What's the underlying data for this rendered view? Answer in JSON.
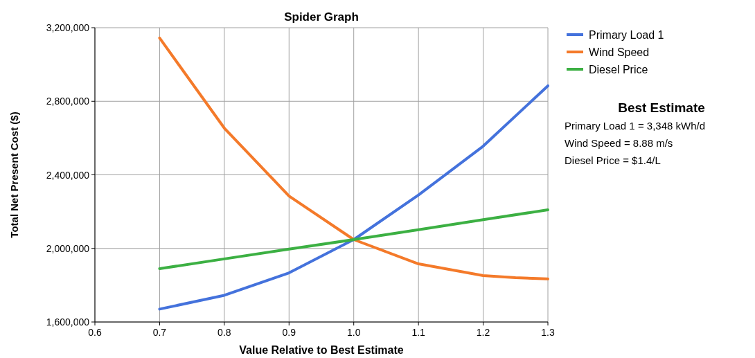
{
  "chart_data": {
    "type": "line",
    "title": "Spider Graph",
    "xlabel": "Value Relative to Best Estimate",
    "ylabel": "Total Net Present Cost ($)",
    "xlim": [
      0.6,
      1.3
    ],
    "xticks": [
      {
        "value": 0.6,
        "label": "0.6"
      },
      {
        "value": 0.7,
        "label": "0.7"
      },
      {
        "value": 0.8,
        "label": "0.8"
      },
      {
        "value": 0.9,
        "label": "0.9"
      },
      {
        "value": 1.0,
        "label": "1.0"
      },
      {
        "value": 1.1,
        "label": "1.1"
      },
      {
        "value": 1.2,
        "label": "1.2"
      },
      {
        "value": 1.3,
        "label": "1.3"
      }
    ],
    "ylim": [
      1600000,
      3200000
    ],
    "yticks": [
      {
        "value": 1600000,
        "label": "1,600,000"
      },
      {
        "value": 2000000,
        "label": "2,000,000"
      },
      {
        "value": 2400000,
        "label": "2,400,000"
      },
      {
        "value": 2800000,
        "label": "2,800,000"
      },
      {
        "value": 3200000,
        "label": "3,200,000"
      }
    ],
    "grid": true,
    "legend": "top right",
    "marker": "none",
    "line_style": "solid",
    "series": [
      {
        "name": "Primary Load 1",
        "color": "#4472dc",
        "x": [
          0.7,
          0.8,
          0.9,
          1.0,
          1.1,
          1.2,
          1.3
        ],
        "values": [
          1670000,
          1745000,
          1867000,
          2048000,
          2290000,
          2556000,
          2884000
        ]
      },
      {
        "name": "Wind Speed",
        "color": "#f47a2a",
        "x": [
          0.7,
          0.8,
          0.9,
          1.0,
          1.1,
          1.2,
          1.25,
          1.3
        ],
        "values": [
          3144000,
          2654000,
          2285000,
          2048000,
          1916000,
          1852000,
          1841000,
          1834000
        ]
      },
      {
        "name": "Diesel Price",
        "color": "#3cb043",
        "x": [
          0.7,
          0.8,
          0.9,
          1.0,
          1.1,
          1.2,
          1.3
        ],
        "values": [
          1890000,
          1943000,
          1996000,
          2048000,
          2102000,
          2156000,
          2210000
        ]
      }
    ],
    "annotations": [
      "Best Estimate",
      "Primary Load 1 = 3,348 kWh/d",
      "Wind Speed = 8.88 m/s",
      "Diesel Price = $1.4/L"
    ]
  }
}
